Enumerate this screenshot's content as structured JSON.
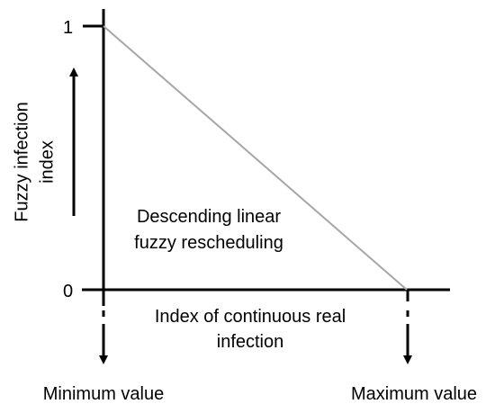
{
  "diagram": {
    "y_axis_label_line1": "Fuzzy infection",
    "y_axis_label_line2": "index",
    "y_tick_top": "1",
    "y_tick_bottom": "0",
    "curve_label_line1": "Descending linear",
    "curve_label_line2": "fuzzy rescheduling",
    "x_axis_label_line1": "Index of continuous real",
    "x_axis_label_line2": "infection",
    "x_min_label": "Minimum value",
    "x_max_label": "Maximum value",
    "colors": {
      "axis": "#000000",
      "curve": "#a6a6a6",
      "text": "#000000"
    }
  }
}
